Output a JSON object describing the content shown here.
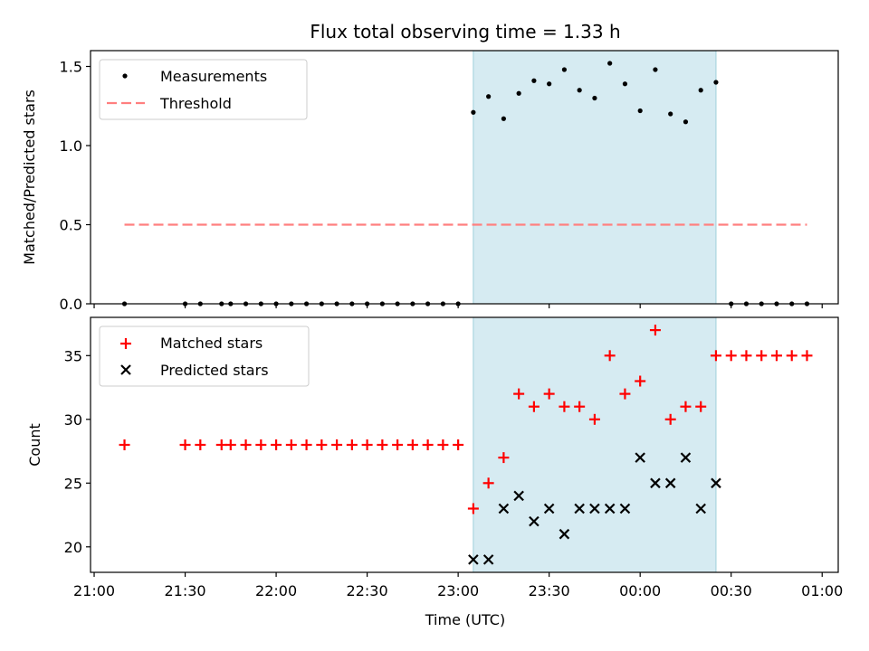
{
  "chart_data": [
    {
      "type": "scatter",
      "title": "Flux total observing time = 1.33 h",
      "xlabel": "",
      "ylabel": "Matched/Predicted stars",
      "xlim": [
        "21:00",
        "01:00"
      ],
      "ylim": [
        0,
        1.6
      ],
      "yticks": [
        0.0,
        0.5,
        1.0,
        1.5
      ],
      "ytick_labels": [
        "0.0",
        "0.5",
        "1.0",
        "1.5"
      ],
      "grid": false,
      "legend": "top-left",
      "shaded_interval": [
        "23:05",
        "00:25"
      ],
      "series": [
        {
          "name": "Measurements",
          "marker": "dot",
          "color": "#000000",
          "x": [
            "21:10",
            "21:30",
            "21:35",
            "21:42",
            "21:45",
            "21:50",
            "21:55",
            "22:00",
            "22:05",
            "22:10",
            "22:15",
            "22:20",
            "22:25",
            "22:30",
            "22:35",
            "22:40",
            "22:45",
            "22:50",
            "22:55",
            "23:00",
            "23:05",
            "23:10",
            "23:15",
            "23:20",
            "23:25",
            "23:30",
            "23:35",
            "23:40",
            "23:45",
            "23:50",
            "23:55",
            "00:00",
            "00:05",
            "00:10",
            "00:15",
            "00:20",
            "00:25",
            "00:30",
            "00:35",
            "00:40",
            "00:45",
            "00:50",
            "00:55"
          ],
          "y": [
            0,
            0,
            0,
            0,
            0,
            0,
            0,
            0,
            0,
            0,
            0,
            0,
            0,
            0,
            0,
            0,
            0,
            0,
            0,
            0,
            1.21,
            1.31,
            1.17,
            1.33,
            1.41,
            1.39,
            1.48,
            1.35,
            1.3,
            1.52,
            1.39,
            1.22,
            1.48,
            1.2,
            1.15,
            1.35,
            1.4,
            0,
            0,
            0,
            0,
            0,
            0
          ]
        },
        {
          "name": "Threshold",
          "style": "dashed",
          "color": "#ff7f7f",
          "x": [
            "21:10",
            "00:55"
          ],
          "y": [
            0.5,
            0.5
          ]
        }
      ]
    },
    {
      "type": "scatter",
      "title": "",
      "xlabel": "Time (UTC)",
      "ylabel": "Count",
      "xlim": [
        "21:00",
        "01:00"
      ],
      "xticks": [
        "21:00",
        "21:30",
        "22:00",
        "22:30",
        "23:00",
        "23:30",
        "00:00",
        "00:30",
        "01:00"
      ],
      "ylim": [
        18,
        38
      ],
      "yticks": [
        20,
        25,
        30,
        35
      ],
      "grid": false,
      "legend": "top-left",
      "shaded_interval": [
        "23:05",
        "00:25"
      ],
      "series": [
        {
          "name": "Matched stars",
          "marker": "plus",
          "color": "#ff0000",
          "x": [
            "21:10",
            "21:30",
            "21:35",
            "21:42",
            "21:45",
            "21:50",
            "21:55",
            "22:00",
            "22:05",
            "22:10",
            "22:15",
            "22:20",
            "22:25",
            "22:30",
            "22:35",
            "22:40",
            "22:45",
            "22:50",
            "22:55",
            "23:00",
            "23:05",
            "23:10",
            "23:15",
            "23:20",
            "23:25",
            "23:30",
            "23:35",
            "23:40",
            "23:45",
            "23:50",
            "23:55",
            "00:00",
            "00:05",
            "00:10",
            "00:15",
            "00:20",
            "00:25",
            "00:30",
            "00:35",
            "00:40",
            "00:45",
            "00:50",
            "00:55"
          ],
          "y": [
            28,
            28,
            28,
            28,
            28,
            28,
            28,
            28,
            28,
            28,
            28,
            28,
            28,
            28,
            28,
            28,
            28,
            28,
            28,
            28,
            23,
            25,
            27,
            32,
            31,
            32,
            31,
            31,
            30,
            35,
            32,
            33,
            37,
            30,
            31,
            31,
            35,
            35,
            35,
            35,
            35,
            35,
            35
          ]
        },
        {
          "name": "Predicted stars",
          "marker": "x",
          "color": "#000000",
          "x": [
            "23:05",
            "23:10",
            "23:15",
            "23:20",
            "23:25",
            "23:30",
            "23:35",
            "23:40",
            "23:45",
            "23:50",
            "23:55",
            "00:00",
            "00:05",
            "00:10",
            "00:15",
            "00:20",
            "00:25"
          ],
          "y": [
            19,
            19,
            23,
            24,
            22,
            23,
            21,
            23,
            23,
            23,
            23,
            27,
            25,
            25,
            27,
            23,
            25
          ]
        }
      ]
    }
  ]
}
